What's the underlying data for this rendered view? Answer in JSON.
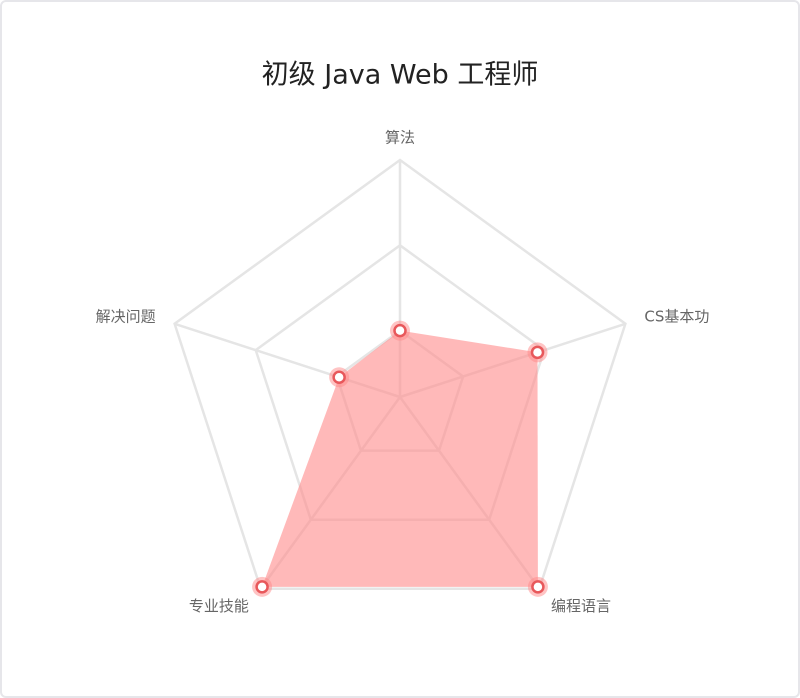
{
  "chart_data": {
    "type": "radar",
    "title": "初级 Java Web 工程师",
    "categories": [
      "算法",
      "CS基本功",
      "编程语言",
      "专业技能",
      "解决问题"
    ],
    "values": [
      28,
      61,
      99,
      99,
      27
    ],
    "color": "#ff8a8a",
    "rlim": [
      0,
      100
    ],
    "rticks": [
      28,
      64,
      100
    ],
    "grid": true
  }
}
